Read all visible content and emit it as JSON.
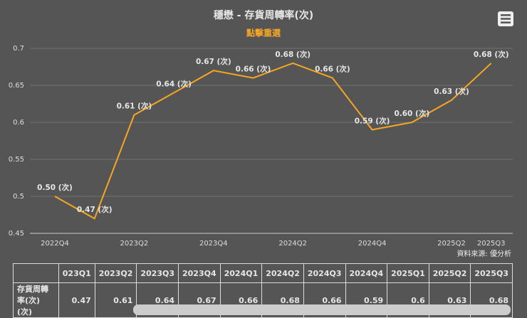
{
  "chart_data": {
    "type": "line",
    "title": "穩懋 - 存貨周轉率(次)",
    "subtitle": "點擊重選",
    "credit": "資料來源: 優分析",
    "categories": [
      "2022Q4",
      null,
      "2023Q2",
      null,
      "2023Q4",
      null,
      "2024Q2",
      null,
      "2024Q4",
      null,
      "2025Q2",
      "2025Q3"
    ],
    "series": [
      {
        "color": "#f5a623",
        "values": [
          0.5,
          0.47,
          0.61,
          0.64,
          0.67,
          0.66,
          0.68,
          0.66,
          0.59,
          0.6,
          0.63,
          0.68
        ],
        "value_labels": [
          "0.50 (次)",
          "0.47 (次)",
          "0.61 (次)",
          "0.64 (次)",
          "0.67 (次)",
          "0.66 (次)",
          "0.68 (次)",
          "0.66 (次)",
          "0.59 (次)",
          "0.60 (次)",
          "0.63 (次)",
          "0.68 (次)"
        ]
      }
    ],
    "ylim": [
      0.45,
      0.7
    ],
    "yticks": [
      0.45,
      0.5,
      0.55,
      0.6,
      0.65,
      0.7
    ],
    "grid": true
  },
  "table": {
    "header": [
      "",
      "023Q1",
      "2023Q2",
      "2023Q3",
      "2023Q4",
      "2024Q1",
      "2024Q2",
      "2024Q3",
      "2024Q4",
      "2025Q1",
      "2025Q2",
      "2025Q3"
    ],
    "rows": [
      [
        "存貨周轉率(次)(次)",
        0.47,
        0.61,
        0.64,
        0.67,
        0.66,
        0.68,
        0.66,
        0.59,
        0.6,
        0.63,
        0.68
      ]
    ]
  }
}
